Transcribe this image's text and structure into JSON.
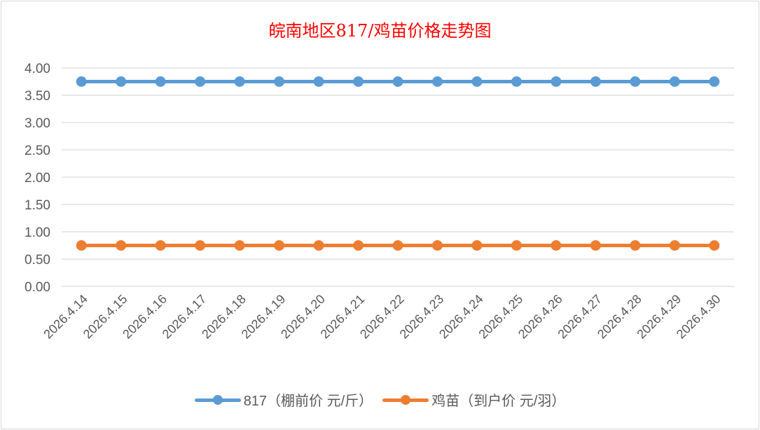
{
  "chart_data": {
    "type": "line",
    "title": "皖南地区817/鸡苗价格走势图",
    "categories": [
      "2026.4.14",
      "2026.4.15",
      "2026.4.16",
      "2026.4.17",
      "2026.4.18",
      "2026.4.19",
      "2026.4.20",
      "2026.4.21",
      "2026.4.22",
      "2026.4.23",
      "2026.4.24",
      "2026.4.25",
      "2026.4.26",
      "2026.4.27",
      "2026.4.28",
      "2026.4.29",
      "2026.4.30"
    ],
    "series": [
      {
        "name": "817（棚前价 元/斤）",
        "color": "#5b9bd5",
        "values": [
          3.75,
          3.75,
          3.75,
          3.75,
          3.75,
          3.75,
          3.75,
          3.75,
          3.75,
          3.75,
          3.75,
          3.75,
          3.75,
          3.75,
          3.75,
          3.75,
          3.75
        ]
      },
      {
        "name": "鸡苗（到户价 元/羽）",
        "color": "#ed7d31",
        "values": [
          0.75,
          0.75,
          0.75,
          0.75,
          0.75,
          0.75,
          0.75,
          0.75,
          0.75,
          0.75,
          0.75,
          0.75,
          0.75,
          0.75,
          0.75,
          0.75,
          0.75
        ]
      }
    ],
    "yticks": [
      "0.00",
      "0.50",
      "1.00",
      "1.50",
      "2.00",
      "2.50",
      "3.00",
      "3.50",
      "4.00"
    ],
    "ylim": [
      0,
      4
    ],
    "grid": true,
    "legend_position": "bottom"
  }
}
